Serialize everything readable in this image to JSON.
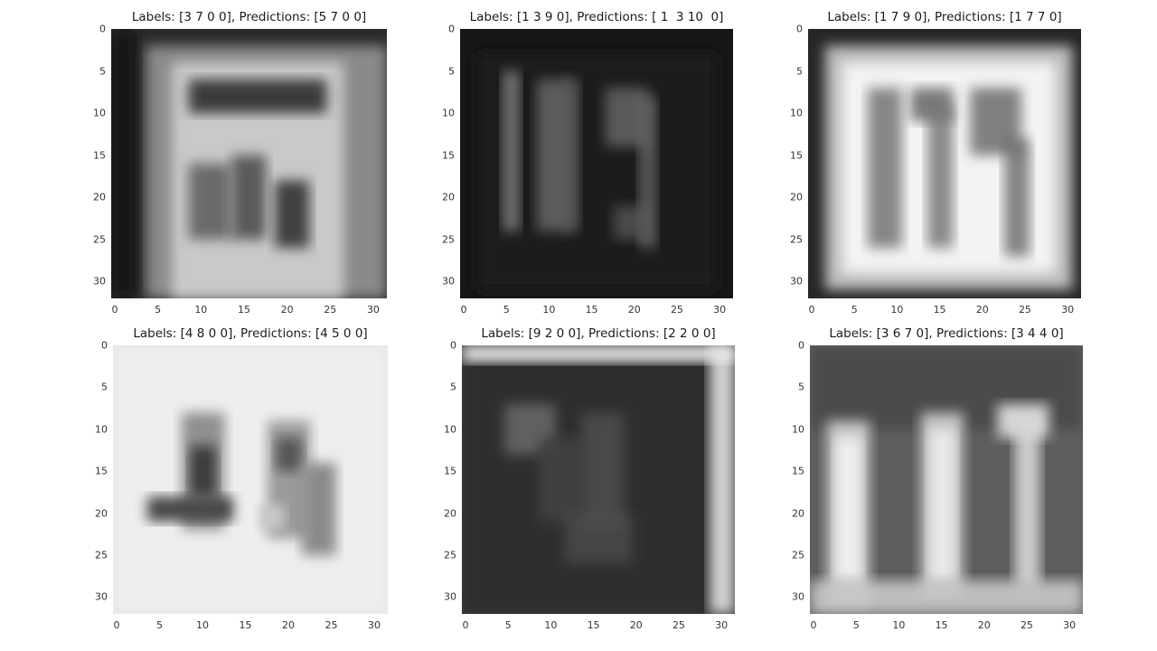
{
  "chart_data": [
    {
      "type": "image",
      "title": "Labels: [3 7 0 0], Predictions: [5 7 0 0]",
      "labels": [
        3,
        7,
        0,
        0
      ],
      "predictions": [
        5,
        7,
        0,
        0
      ],
      "xlim": [
        0,
        32
      ],
      "ylim": [
        0,
        32
      ],
      "xticks": [
        0,
        5,
        10,
        15,
        20,
        25,
        30
      ],
      "yticks": [
        0,
        5,
        10,
        15,
        20,
        25,
        30
      ],
      "tone": "dark-frame-bright-sign",
      "grid": false
    },
    {
      "type": "image",
      "title": "Labels: [1 3 9 0], Predictions: [ 1  3 10  0]",
      "labels": [
        1,
        3,
        9,
        0
      ],
      "predictions": [
        1,
        3,
        10,
        0
      ],
      "xlim": [
        0,
        32
      ],
      "ylim": [
        0,
        32
      ],
      "xticks": [
        0,
        5,
        10,
        15,
        20,
        25,
        30
      ],
      "yticks": [
        0,
        5,
        10,
        15,
        20,
        25,
        30
      ],
      "tone": "dark",
      "grid": false
    },
    {
      "type": "image",
      "title": "Labels: [1 7 9 0], Predictions: [1 7 7 0]",
      "labels": [
        1,
        7,
        9,
        0
      ],
      "predictions": [
        1,
        7,
        7,
        0
      ],
      "xlim": [
        0,
        32
      ],
      "ylim": [
        0,
        32
      ],
      "xticks": [
        0,
        5,
        10,
        15,
        20,
        25,
        30
      ],
      "yticks": [
        0,
        5,
        10,
        15,
        20,
        25,
        30
      ],
      "tone": "bright-sign",
      "grid": false
    },
    {
      "type": "image",
      "title": "Labels: [4 8 0 0], Predictions: [4 5 0 0]",
      "labels": [
        4,
        8,
        0,
        0
      ],
      "predictions": [
        4,
        5,
        0,
        0
      ],
      "xlim": [
        0,
        32
      ],
      "ylim": [
        0,
        32
      ],
      "xticks": [
        0,
        5,
        10,
        15,
        20,
        25,
        30
      ],
      "yticks": [
        0,
        5,
        10,
        15,
        20,
        25,
        30
      ],
      "tone": "light",
      "grid": false
    },
    {
      "type": "image",
      "title": "Labels: [9 2 0 0], Predictions: [2 2 0 0]",
      "labels": [
        9,
        2,
        0,
        0
      ],
      "predictions": [
        2,
        2,
        0,
        0
      ],
      "xlim": [
        0,
        32
      ],
      "ylim": [
        0,
        32
      ],
      "xticks": [
        0,
        5,
        10,
        15,
        20,
        25,
        30
      ],
      "yticks": [
        0,
        5,
        10,
        15,
        20,
        25,
        30
      ],
      "tone": "mid-dark",
      "grid": false
    },
    {
      "type": "image",
      "title": "Labels: [3 6 7 0], Predictions: [3 4 4 0]",
      "labels": [
        3,
        6,
        7,
        0
      ],
      "predictions": [
        3,
        4,
        4,
        0
      ],
      "xlim": [
        0,
        32
      ],
      "ylim": [
        0,
        32
      ],
      "xticks": [
        0,
        5,
        10,
        15,
        20,
        25,
        30
      ],
      "yticks": [
        0,
        5,
        10,
        15,
        20,
        25,
        30
      ],
      "tone": "mid-gray",
      "grid": false
    }
  ]
}
